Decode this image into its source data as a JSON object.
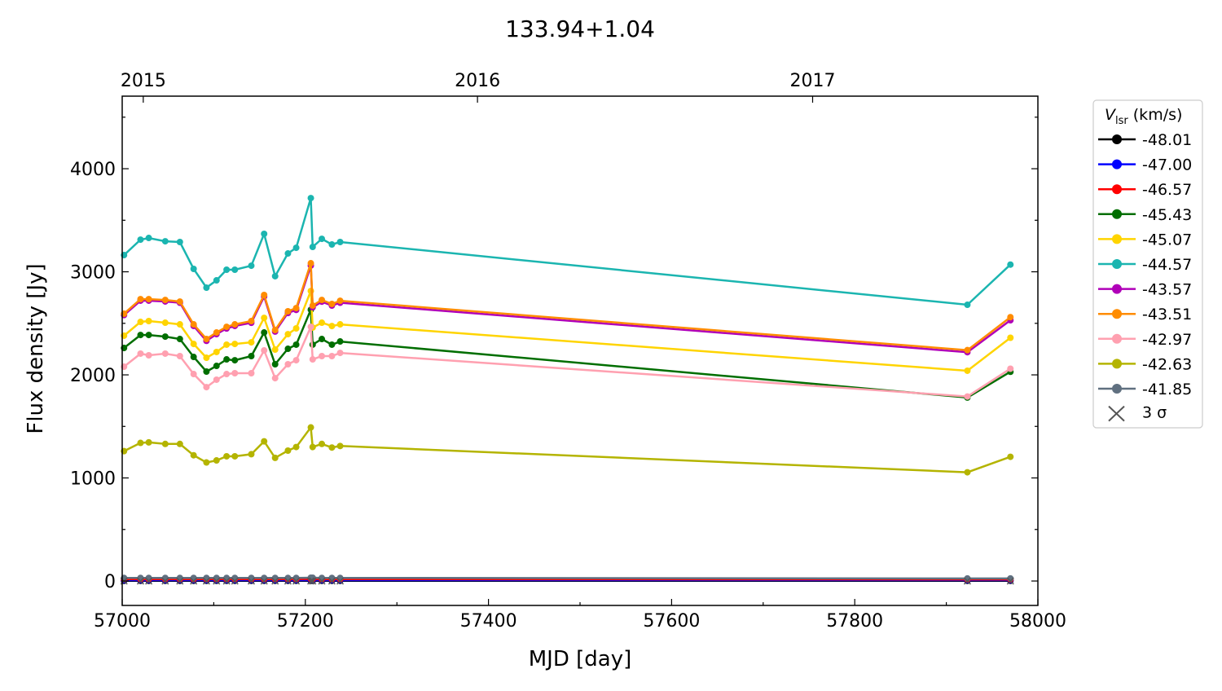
{
  "chart_data": {
    "type": "line",
    "title": "133.94+1.04",
    "xlabel": "MJD [day]",
    "ylabel": "Flux density [Jy]",
    "xlim": [
      57000,
      58000
    ],
    "ylim": [
      -237,
      4704
    ],
    "xticks": [
      57000,
      57200,
      57400,
      57600,
      57800,
      58000
    ],
    "yticks": [
      0,
      1000,
      2000,
      3000,
      4000
    ],
    "top_axis": {
      "labels": [
        "2015",
        "2016",
        "2017"
      ],
      "mjd": [
        57023,
        57388,
        57754
      ]
    },
    "legend": {
      "title_main": "V",
      "title_sub": "lsr",
      "title_unit": " (km/s)",
      "placement": "outside-right",
      "sigma_label": "3 σ"
    },
    "x": [
      57002,
      57020,
      57029,
      57047,
      57063,
      57078,
      57092,
      57103,
      57114,
      57123,
      57141,
      57155,
      57167,
      57181,
      57190,
      57206,
      57208,
      57218,
      57229,
      57238,
      57923,
      57970
    ],
    "series": [
      {
        "name": "-48.01",
        "color": "#000000",
        "values": [
          2,
          2,
          2,
          2,
          2,
          2,
          2,
          2,
          2,
          2,
          2,
          2,
          2,
          2,
          2,
          2,
          2,
          2,
          2,
          2,
          2,
          2
        ]
      },
      {
        "name": "-47.00",
        "color": "#0000ff",
        "values": [
          8,
          8,
          8,
          8,
          8,
          8,
          8,
          8,
          8,
          8,
          8,
          8,
          8,
          8,
          8,
          8,
          8,
          8,
          8,
          8,
          8,
          8
        ]
      },
      {
        "name": "-46.57",
        "color": "#ff0000",
        "values": [
          18,
          18,
          18,
          18,
          18,
          18,
          18,
          18,
          18,
          18,
          18,
          18,
          18,
          18,
          18,
          20,
          20,
          18,
          18,
          18,
          15,
          15
        ]
      },
      {
        "name": "-45.43",
        "color": "#006e00",
        "values": [
          2261,
          2387,
          2387,
          2371,
          2348,
          2174,
          2032,
          2087,
          2150,
          2142,
          2182,
          2411,
          2103,
          2253,
          2293,
          2632,
          2293,
          2348,
          2293,
          2324,
          1780,
          2030
        ]
      },
      {
        "name": "-45.07",
        "color": "#ffd400",
        "values": [
          2380,
          2514,
          2522,
          2506,
          2490,
          2300,
          2166,
          2222,
          2293,
          2300,
          2316,
          2553,
          2245,
          2395,
          2451,
          2814,
          2459,
          2506,
          2474,
          2490,
          2040,
          2360
        ]
      },
      {
        "name": "-44.57",
        "color": "#1bb5b0",
        "values": [
          3162,
          3312,
          3328,
          3296,
          3289,
          3028,
          2846,
          2917,
          3020,
          3020,
          3059,
          3368,
          2957,
          3178,
          3233,
          3715,
          3241,
          3320,
          3265,
          3289,
          2680,
          3070
        ]
      },
      {
        "name": "-43.57",
        "color": "#b000b8",
        "values": [
          2580,
          2720,
          2720,
          2712,
          2700,
          2475,
          2330,
          2395,
          2450,
          2475,
          2505,
          2760,
          2420,
          2600,
          2630,
          3060,
          2655,
          2710,
          2672,
          2700,
          2220,
          2530
        ]
      },
      {
        "name": "-43.51",
        "color": "#ff8c00",
        "values": [
          2593,
          2735,
          2735,
          2727,
          2711,
          2490,
          2348,
          2411,
          2466,
          2490,
          2522,
          2775,
          2435,
          2617,
          2648,
          3083,
          2672,
          2727,
          2688,
          2719,
          2240,
          2560
        ]
      },
      {
        "name": "-42.97",
        "color": "#ffa0b0",
        "values": [
          2079,
          2206,
          2190,
          2206,
          2182,
          2008,
          1881,
          1953,
          2008,
          2016,
          2016,
          2237,
          1968,
          2103,
          2142,
          2466,
          2150,
          2182,
          2182,
          2213,
          1790,
          2060
        ]
      },
      {
        "name": "-42.63",
        "color": "#b4b400",
        "values": [
          1260,
          1340,
          1345,
          1330,
          1330,
          1220,
          1150,
          1170,
          1210,
          1210,
          1230,
          1355,
          1195,
          1265,
          1300,
          1490,
          1300,
          1330,
          1295,
          1310,
          1055,
          1205
        ]
      },
      {
        "name": "-41.85",
        "color": "#607080",
        "values": [
          30,
          30,
          30,
          30,
          30,
          30,
          30,
          30,
          30,
          30,
          30,
          30,
          30,
          30,
          30,
          32,
          32,
          30,
          30,
          30,
          25,
          25
        ]
      }
    ],
    "sigma_upper_limits": {
      "color": "#555555",
      "values": [
        0,
        0,
        0,
        0,
        0,
        0,
        0,
        0,
        0,
        0,
        0,
        0,
        0,
        0,
        0,
        0,
        0,
        0,
        0,
        0,
        0,
        0
      ]
    }
  }
}
